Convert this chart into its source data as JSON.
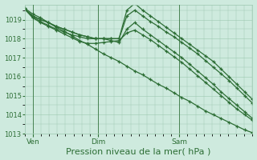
{
  "background_color": "#ceeade",
  "grid_color": "#9dc8b0",
  "line_color": "#2d6e35",
  "xlabel": "Pression niveau de la mer( hPa )",
  "xlabel_fontsize": 8,
  "ylim": [
    1013.0,
    1019.8
  ],
  "yticks": [
    1013,
    1014,
    1015,
    1016,
    1017,
    1018,
    1019
  ],
  "xtick_labels": [
    "Ven",
    "Dim",
    "Sam"
  ],
  "xtick_positions": [
    6,
    54,
    114
  ],
  "xmin": 0,
  "xmax": 168,
  "series": [
    [
      1019.6,
      1019.3,
      1019.1,
      1018.85,
      1018.6,
      1018.4,
      1018.15,
      1017.9,
      1017.7,
      1017.45,
      1017.2,
      1017.0,
      1016.8,
      1016.55,
      1016.3,
      1016.1,
      1015.85,
      1015.6,
      1015.4,
      1015.15,
      1014.9,
      1014.7,
      1014.45,
      1014.2,
      1014.0,
      1013.8,
      1013.6,
      1013.4,
      1013.2,
      1013.05
    ],
    [
      1019.55,
      1019.2,
      1019.0,
      1018.85,
      1018.65,
      1018.5,
      1018.35,
      1018.2,
      1018.1,
      1018.0,
      1018.0,
      1018.0,
      1018.0,
      1019.5,
      1019.85,
      1019.5,
      1019.2,
      1018.9,
      1018.6,
      1018.3,
      1018.0,
      1017.7,
      1017.4,
      1017.1,
      1016.8,
      1016.4,
      1016.0,
      1015.6,
      1015.2,
      1014.8
    ],
    [
      1019.55,
      1019.2,
      1019.0,
      1018.85,
      1018.65,
      1018.5,
      1018.35,
      1018.2,
      1018.1,
      1018.0,
      1018.0,
      1018.0,
      1018.0,
      1019.2,
      1019.5,
      1019.2,
      1018.9,
      1018.65,
      1018.35,
      1018.1,
      1017.8,
      1017.5,
      1017.2,
      1016.85,
      1016.5,
      1016.15,
      1015.8,
      1015.4,
      1015.0,
      1014.6
    ],
    [
      1019.55,
      1019.15,
      1018.9,
      1018.7,
      1018.5,
      1018.35,
      1018.2,
      1018.1,
      1018.0,
      1018.0,
      1018.0,
      1017.9,
      1017.8,
      1018.5,
      1018.85,
      1018.5,
      1018.2,
      1017.9,
      1017.6,
      1017.3,
      1017.0,
      1016.65,
      1016.3,
      1015.95,
      1015.6,
      1015.2,
      1014.85,
      1014.5,
      1014.15,
      1013.8
    ],
    [
      1019.55,
      1019.1,
      1018.85,
      1018.65,
      1018.45,
      1018.25,
      1018.05,
      1017.85,
      1017.75,
      1017.75,
      1017.8,
      1017.85,
      1017.9,
      1018.3,
      1018.45,
      1018.2,
      1017.95,
      1017.65,
      1017.35,
      1017.05,
      1016.75,
      1016.4,
      1016.05,
      1015.7,
      1015.35,
      1015.0,
      1014.65,
      1014.3,
      1014.0,
      1013.7
    ]
  ]
}
